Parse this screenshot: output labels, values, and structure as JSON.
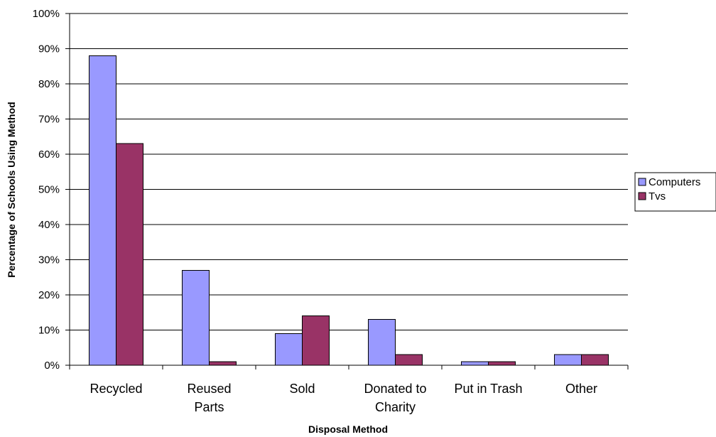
{
  "chart_data": {
    "type": "bar",
    "title": "",
    "xlabel": "Disposal Method",
    "ylabel": "Percentage of Schools Using Method",
    "ylim": [
      0,
      100
    ],
    "yticks": [
      "0%",
      "10%",
      "20%",
      "30%",
      "40%",
      "50%",
      "60%",
      "70%",
      "80%",
      "90%",
      "100%"
    ],
    "categories": [
      [
        "Recycled"
      ],
      [
        "Reused",
        "Parts"
      ],
      [
        "Sold"
      ],
      [
        "Donated to",
        "Charity"
      ],
      [
        "Put in Trash"
      ],
      [
        "Other"
      ]
    ],
    "series": [
      {
        "name": "Computers",
        "color": "#9999FF",
        "values": [
          88,
          27,
          9,
          13,
          1,
          3
        ]
      },
      {
        "name": "Tvs",
        "color": "#993366",
        "values": [
          63,
          1,
          14,
          3,
          1,
          3
        ]
      }
    ],
    "grid": true,
    "legend_position": "right"
  }
}
